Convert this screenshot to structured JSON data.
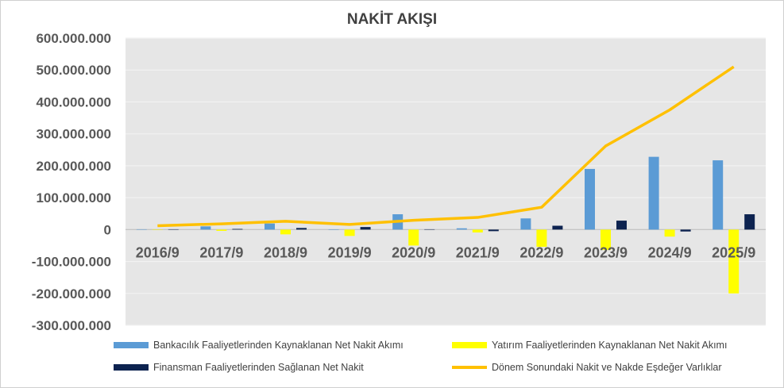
{
  "chart_data": {
    "type": "bar",
    "title": "NAKİT AKIŞI",
    "categories": [
      "2016/9",
      "2017/9",
      "2018/9",
      "2019/9",
      "2020/9",
      "2021/9",
      "2022/9",
      "2023/9",
      "2024/9",
      "2025/9"
    ],
    "ylim": [
      -300000000,
      600000000
    ],
    "yticks": [
      600000000,
      500000000,
      400000000,
      300000000,
      200000000,
      100000000,
      0,
      -100000000,
      -200000000,
      -300000000
    ],
    "ytick_labels": [
      "600.000.000",
      "500.000.000",
      "400.000.000",
      "300.000.000",
      "200.000.000",
      "100.000.000",
      "0",
      "-100.000.000",
      "-200.000.000",
      "-300.000.000"
    ],
    "grid": true,
    "legend_position": "bottom",
    "series": [
      {
        "name": "Bankacılık Faaliyetlerinden Kaynaklanan Net Nakit Akımı",
        "type": "bar",
        "color": "#5B9BD5",
        "values": [
          1000000,
          10000000,
          19000000,
          -1000000,
          48000000,
          4000000,
          35000000,
          190000000,
          228000000,
          217000000
        ]
      },
      {
        "name": "Yatırım Faaliyetlerinden Kaynaklanan Net Nakit Akımı",
        "type": "bar",
        "color": "#FFFF00",
        "values": [
          -1000000,
          -4000000,
          -15000000,
          -20000000,
          -50000000,
          -9000000,
          -54000000,
          -64000000,
          -22000000,
          -200000000
        ]
      },
      {
        "name": "Finansman Faaliyetlerinden Sağlanan Net Nakit",
        "type": "bar",
        "color": "#0D2350",
        "values": [
          1000000,
          2000000,
          5000000,
          8000000,
          1000000,
          -5000000,
          12000000,
          28000000,
          -6000000,
          48000000
        ]
      },
      {
        "name": "Dönem Sonundaki Nakit ve Nakde Eşdeğer Varlıklar",
        "type": "line",
        "color": "#FFC000",
        "values": [
          12000000,
          18000000,
          26000000,
          16000000,
          29000000,
          38000000,
          70000000,
          262000000,
          375000000,
          510000000
        ]
      }
    ]
  }
}
